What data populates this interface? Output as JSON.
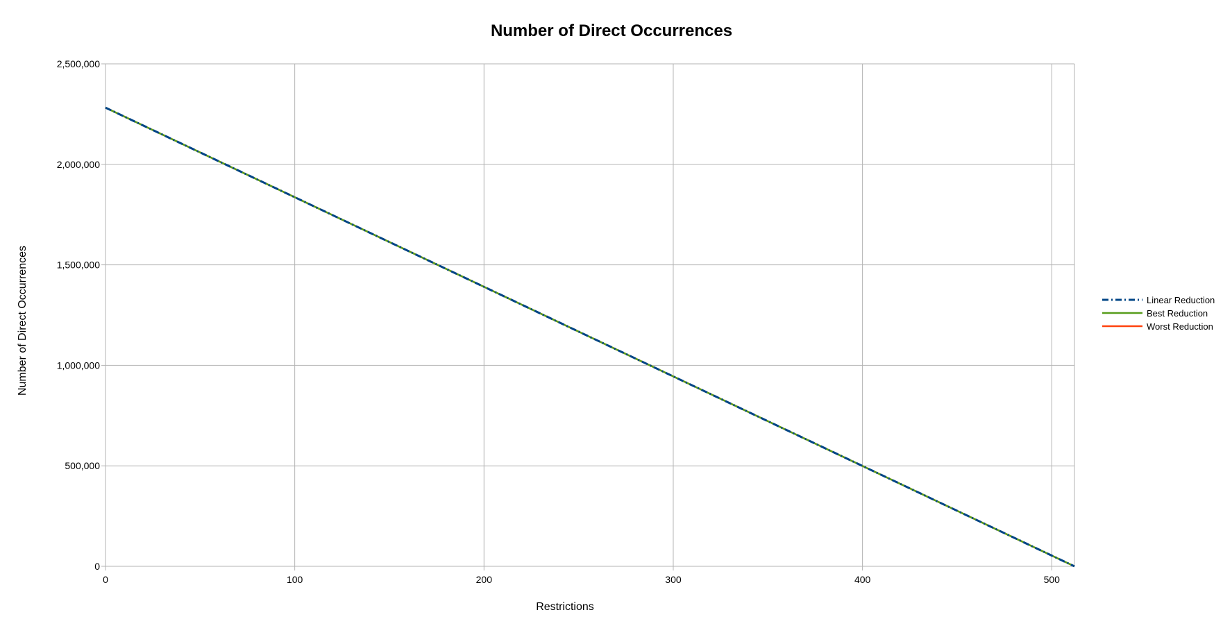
{
  "chart_data": {
    "type": "line",
    "title": "Number of Direct Occurrences",
    "xlabel": "Restrictions",
    "ylabel": "Number of Direct Occurrences",
    "xlim": [
      0,
      512
    ],
    "ylim": [
      0,
      2500000
    ],
    "x_ticks": [
      0,
      100,
      200,
      300,
      400,
      500
    ],
    "x_tick_labels": [
      "0",
      "100",
      "200",
      "300",
      "400",
      "500"
    ],
    "y_ticks": [
      0,
      500000,
      1000000,
      1500000,
      2000000,
      2500000
    ],
    "y_tick_labels": [
      "0",
      "500,000",
      "1,000,000",
      "1,500,000",
      "2,000,000",
      "2,500,000"
    ],
    "grid": true,
    "legend_position": "right",
    "series": [
      {
        "name": "Linear Reduction",
        "color": "#004586",
        "style": "dash-dot",
        "x": [
          0,
          512
        ],
        "values": [
          2282000,
          0
        ]
      },
      {
        "name": "Best Reduction",
        "color": "#579d1c",
        "style": "solid",
        "x": [
          0,
          512
        ],
        "values": [
          2282000,
          0
        ]
      },
      {
        "name": "Worst Reduction",
        "color": "#ff420e",
        "style": "solid",
        "x": [
          0,
          512
        ],
        "values": [
          2282000,
          0
        ]
      }
    ]
  }
}
